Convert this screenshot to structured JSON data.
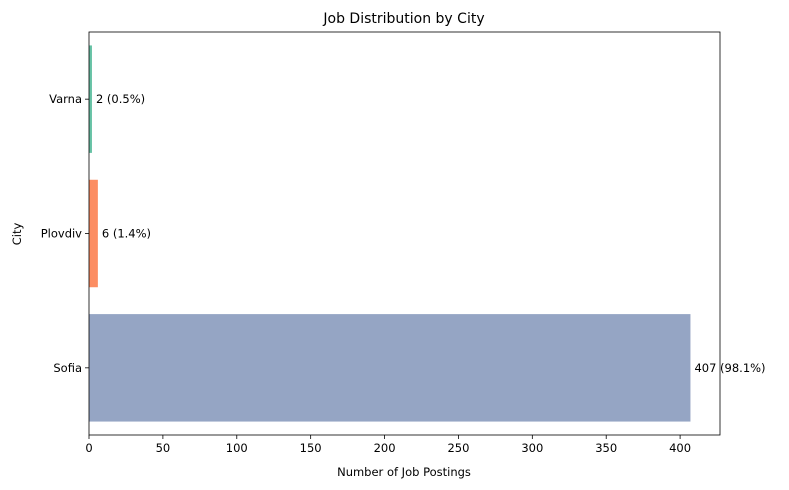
{
  "chart_data": {
    "type": "bar",
    "orientation": "horizontal",
    "title": "Job Distribution by City",
    "xlabel": "Number of Job Postings",
    "ylabel": "City",
    "categories": [
      "Varna",
      "Plovdiv",
      "Sofia"
    ],
    "values": [
      2,
      6,
      407
    ],
    "data_labels": [
      "2 (0.5%)",
      "6 (1.4%)",
      "407 (98.1%)"
    ],
    "colors": [
      "#66c2a5",
      "#fc8d62",
      "#95a5c4"
    ],
    "xlim": [
      0,
      427
    ],
    "xticks": [
      0,
      50,
      100,
      150,
      200,
      250,
      300,
      350,
      400
    ],
    "grid": false,
    "legend": "none"
  }
}
